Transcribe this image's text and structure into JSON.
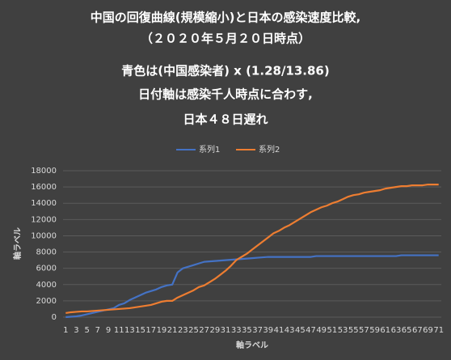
{
  "chart_data": {
    "type": "line",
    "title_lines": [
      "中国の回復曲線(規模縮小)と日本の感染速度比較,",
      "（２０２０年５月２０日時点）",
      "青色は(中国感染者) x (1.28/13.86)",
      "日付軸は感染千人時点に合わす,",
      "日本４８日遅れ"
    ],
    "x_label": "軸ラベル",
    "y_label": "軸ラベル",
    "categories": [
      "1",
      null,
      "3",
      null,
      "5",
      null,
      "7",
      null,
      "9",
      null,
      "11",
      null,
      "13",
      null,
      "15",
      null,
      "17",
      null,
      "19",
      null,
      "21",
      null,
      "23",
      null,
      "25",
      null,
      "27",
      null,
      "29",
      null,
      "31",
      null,
      "33",
      null,
      "35",
      null,
      "37",
      null,
      "39",
      null,
      "41",
      null,
      "43",
      null,
      "45",
      null,
      "47",
      null,
      "49",
      null,
      "51",
      null,
      "53",
      null,
      "55",
      null,
      "57",
      null,
      "59",
      null,
      "61",
      null,
      "63",
      null,
      "65",
      null,
      "67",
      null,
      "69",
      null,
      "71"
    ],
    "series": [
      {
        "name": "系列1",
        "color": "#4472c4",
        "values": [
          0,
          50,
          100,
          200,
          350,
          500,
          650,
          800,
          950,
          1100,
          1500,
          1700,
          2100,
          2400,
          2700,
          3000,
          3200,
          3400,
          3700,
          3900,
          4000,
          5500,
          6000,
          6200,
          6400,
          6600,
          6800,
          6850,
          6900,
          6950,
          7000,
          7050,
          7100,
          7150,
          7200,
          7250,
          7300,
          7350,
          7400,
          7400,
          7400,
          7400,
          7400,
          7400,
          7400,
          7400,
          7400,
          7500,
          7500,
          7500,
          7500,
          7500,
          7500,
          7500,
          7500,
          7500,
          7500,
          7500,
          7500,
          7500,
          7500,
          7500,
          7500,
          7600,
          7600,
          7600,
          7600,
          7600,
          7600,
          7600,
          7600
        ]
      },
      {
        "name": "系列2",
        "color": "#ed7d31",
        "values": [
          500,
          600,
          650,
          700,
          700,
          750,
          800,
          850,
          900,
          950,
          1000,
          1050,
          1100,
          1200,
          1300,
          1400,
          1500,
          1700,
          1900,
          2000,
          2000,
          2400,
          2700,
          3000,
          3300,
          3700,
          3900,
          4300,
          4700,
          5200,
          5700,
          6300,
          7000,
          7400,
          7800,
          8300,
          8800,
          9300,
          9800,
          10300,
          10600,
          11000,
          11300,
          11700,
          12100,
          12500,
          12900,
          13200,
          13500,
          13700,
          14000,
          14200,
          14500,
          14800,
          15000,
          15100,
          15300,
          15400,
          15500,
          15600,
          15800,
          15900,
          16000,
          16100,
          16100,
          16200,
          16200,
          16200,
          16300,
          16300,
          16300
        ]
      }
    ],
    "ylim": [
      0,
      18000
    ],
    "yticks": [
      0,
      2000,
      4000,
      6000,
      8000,
      10000,
      12000,
      14000,
      16000,
      18000
    ],
    "grid": true,
    "legend": "top"
  }
}
